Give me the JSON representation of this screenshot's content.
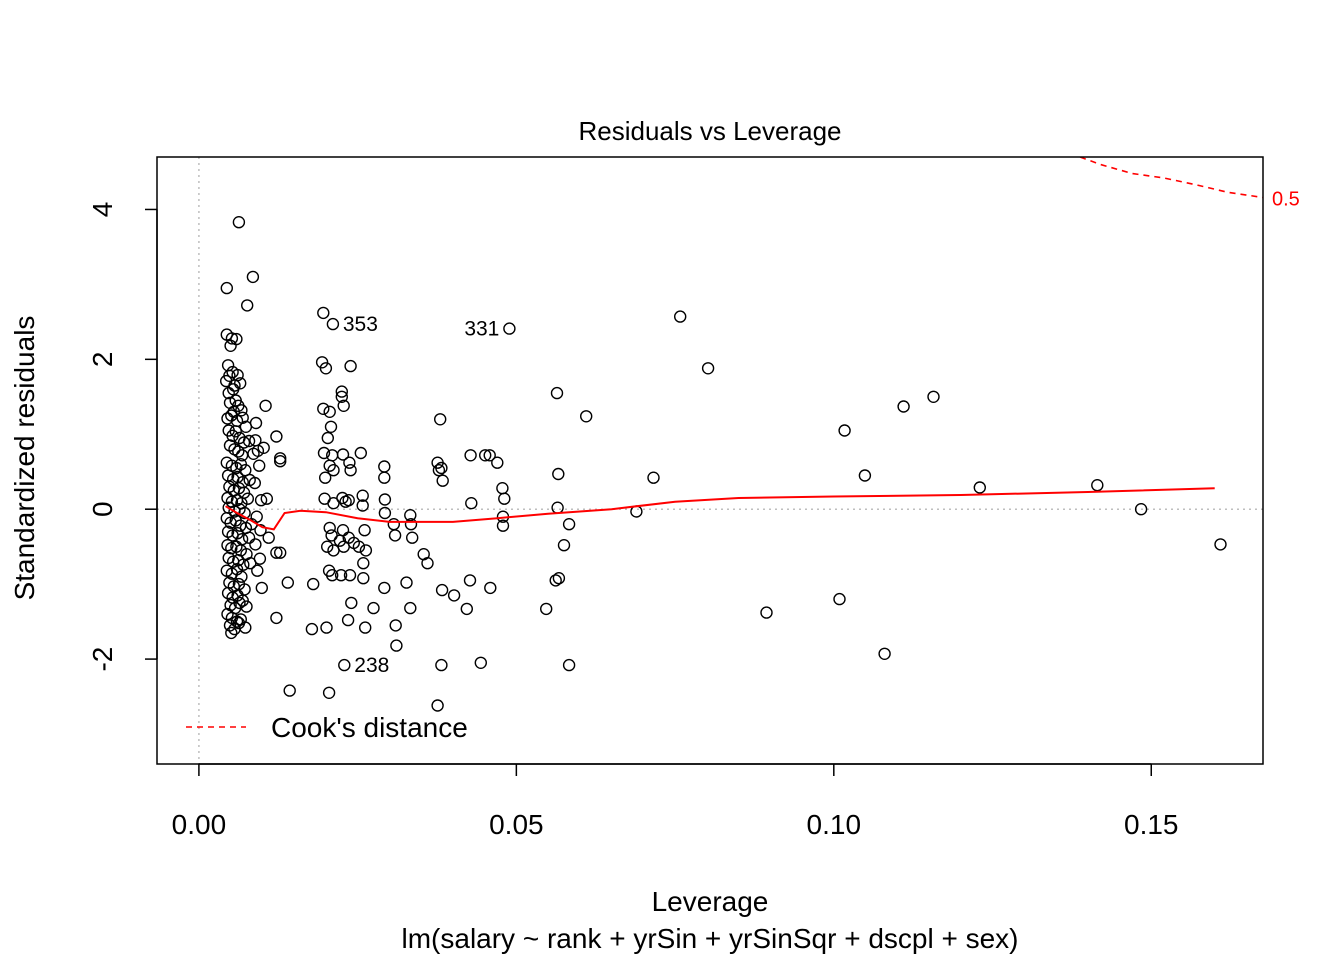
{
  "chart_data": {
    "type": "scatter",
    "title": "Residuals vs Leverage",
    "xlabel": "Leverage",
    "subtitle": "lm(salary ~ rank + yrSin + yrSinSqr + dscpl + sex)",
    "ylabel": "Standardized residuals",
    "xlim": [
      -0.0066,
      0.1676
    ],
    "ylim": [
      -3.4,
      4.7
    ],
    "x_ticks": [
      0.0,
      0.05,
      0.1,
      0.15
    ],
    "x_tick_labels": [
      "0.00",
      "0.05",
      "0.10",
      "0.15"
    ],
    "y_ticks": [
      -2,
      0,
      2,
      4
    ],
    "y_tick_labels": [
      "-2",
      "0",
      "2",
      "4"
    ],
    "grid": false,
    "reference_lines": {
      "x": 0,
      "y": 0
    },
    "legend": {
      "position": "bottom-left",
      "label": "Cook's distance",
      "color": "#ff0000"
    },
    "colors": {
      "points": "#000000",
      "smooth": "#ff0000",
      "cooks": "#ff0000",
      "refline": "#bebebe"
    },
    "point_labels": [
      {
        "id": "353",
        "x": 0.0211,
        "y": 2.47,
        "side": "right"
      },
      {
        "id": "331",
        "x": 0.0489,
        "y": 2.41,
        "side": "left"
      },
      {
        "id": "238",
        "x": 0.0229,
        "y": -2.08,
        "side": "right"
      }
    ],
    "cooks_contour": {
      "label": "0.5",
      "points": [
        [
          0.1388,
          4.7
        ],
        [
          0.142,
          4.6
        ],
        [
          0.147,
          4.48
        ],
        [
          0.152,
          4.42
        ],
        [
          0.157,
          4.33
        ],
        [
          0.162,
          4.23
        ],
        [
          0.1676,
          4.16
        ]
      ]
    },
    "smooth_line": [
      [
        0.0042,
        0.04
      ],
      [
        0.006,
        -0.05
      ],
      [
        0.008,
        -0.14
      ],
      [
        0.01,
        -0.24
      ],
      [
        0.0118,
        -0.27
      ],
      [
        0.0135,
        -0.05
      ],
      [
        0.016,
        -0.02
      ],
      [
        0.02,
        -0.04
      ],
      [
        0.025,
        -0.12
      ],
      [
        0.03,
        -0.17
      ],
      [
        0.04,
        -0.17
      ],
      [
        0.047,
        -0.12
      ],
      [
        0.055,
        -0.06
      ],
      [
        0.065,
        0.0
      ],
      [
        0.075,
        0.1
      ],
      [
        0.085,
        0.15
      ],
      [
        0.1,
        0.17
      ],
      [
        0.12,
        0.19
      ],
      [
        0.14,
        0.23
      ],
      [
        0.16,
        0.28
      ]
    ],
    "points": [
      [
        0.0063,
        3.83
      ],
      [
        0.0044,
        2.95
      ],
      [
        0.0085,
        3.1
      ],
      [
        0.0076,
        2.72
      ],
      [
        0.0044,
        2.33
      ],
      [
        0.0052,
        2.28
      ],
      [
        0.0059,
        2.27
      ],
      [
        0.005,
        2.18
      ],
      [
        0.0046,
        1.92
      ],
      [
        0.0048,
        1.78
      ],
      [
        0.0053,
        1.83
      ],
      [
        0.0061,
        1.79
      ],
      [
        0.0056,
        1.65
      ],
      [
        0.0043,
        1.71
      ],
      [
        0.0065,
        1.68
      ],
      [
        0.0047,
        1.55
      ],
      [
        0.0054,
        1.6
      ],
      [
        0.0058,
        1.45
      ],
      [
        0.0062,
        1.38
      ],
      [
        0.0049,
        1.42
      ],
      [
        0.0055,
        1.3
      ],
      [
        0.0067,
        1.32
      ],
      [
        0.0045,
        1.21
      ],
      [
        0.0051,
        1.25
      ],
      [
        0.006,
        1.18
      ],
      [
        0.0069,
        1.22
      ],
      [
        0.0074,
        1.1
      ],
      [
        0.0047,
        1.05
      ],
      [
        0.0053,
        0.98
      ],
      [
        0.0058,
        1.04
      ],
      [
        0.0064,
        0.95
      ],
      [
        0.0071,
        0.89
      ],
      [
        0.0079,
        0.91
      ],
      [
        0.0049,
        0.85
      ],
      [
        0.0056,
        0.8
      ],
      [
        0.0062,
        0.77
      ],
      [
        0.0068,
        0.72
      ],
      [
        0.0086,
        0.74
      ],
      [
        0.0044,
        0.62
      ],
      [
        0.0052,
        0.58
      ],
      [
        0.0059,
        0.55
      ],
      [
        0.0066,
        0.6
      ],
      [
        0.0073,
        0.52
      ],
      [
        0.0046,
        0.45
      ],
      [
        0.0054,
        0.4
      ],
      [
        0.0061,
        0.43
      ],
      [
        0.0069,
        0.36
      ],
      [
        0.008,
        0.39
      ],
      [
        0.0048,
        0.3
      ],
      [
        0.0055,
        0.25
      ],
      [
        0.0063,
        0.28
      ],
      [
        0.0071,
        0.22
      ],
      [
        0.0045,
        0.15
      ],
      [
        0.0052,
        0.1
      ],
      [
        0.006,
        0.12
      ],
      [
        0.0067,
        0.08
      ],
      [
        0.0077,
        0.14
      ],
      [
        0.0047,
        0.02
      ],
      [
        0.0056,
        -0.03
      ],
      [
        0.0064,
        0.0
      ],
      [
        0.0072,
        -0.05
      ],
      [
        0.0044,
        -0.12
      ],
      [
        0.005,
        -0.18
      ],
      [
        0.0058,
        -0.15
      ],
      [
        0.0065,
        -0.22
      ],
      [
        0.0074,
        -0.25
      ],
      [
        0.0083,
        -0.2
      ],
      [
        0.0046,
        -0.3
      ],
      [
        0.0053,
        -0.35
      ],
      [
        0.0061,
        -0.32
      ],
      [
        0.0068,
        -0.4
      ],
      [
        0.0079,
        -0.38
      ],
      [
        0.0045,
        -0.48
      ],
      [
        0.0051,
        -0.52
      ],
      [
        0.0059,
        -0.5
      ],
      [
        0.0066,
        -0.55
      ],
      [
        0.0075,
        -0.6
      ],
      [
        0.0047,
        -0.65
      ],
      [
        0.0054,
        -0.7
      ],
      [
        0.0062,
        -0.68
      ],
      [
        0.007,
        -0.74
      ],
      [
        0.0081,
        -0.72
      ],
      [
        0.0044,
        -0.82
      ],
      [
        0.0052,
        -0.86
      ],
      [
        0.006,
        -0.8
      ],
      [
        0.0067,
        -0.9
      ],
      [
        0.0048,
        -0.98
      ],
      [
        0.0055,
        -1.03
      ],
      [
        0.0063,
        -1.0
      ],
      [
        0.0072,
        -1.07
      ],
      [
        0.0046,
        -1.12
      ],
      [
        0.0053,
        -1.18
      ],
      [
        0.0061,
        -1.15
      ],
      [
        0.0069,
        -1.22
      ],
      [
        0.005,
        -1.28
      ],
      [
        0.0057,
        -1.32
      ],
      [
        0.0064,
        -1.25
      ],
      [
        0.0075,
        -1.3
      ],
      [
        0.0045,
        -1.4
      ],
      [
        0.0052,
        -1.45
      ],
      [
        0.006,
        -1.5
      ],
      [
        0.0066,
        -1.47
      ],
      [
        0.0049,
        -1.55
      ],
      [
        0.0056,
        -1.6
      ],
      [
        0.0063,
        -1.52
      ],
      [
        0.0073,
        -1.58
      ],
      [
        0.0051,
        -1.65
      ],
      [
        0.009,
        1.15
      ],
      [
        0.0089,
        0.92
      ],
      [
        0.0093,
        0.78
      ],
      [
        0.0095,
        0.58
      ],
      [
        0.0088,
        0.35
      ],
      [
        0.0098,
        0.12
      ],
      [
        0.0091,
        -0.1
      ],
      [
        0.0097,
        -0.28
      ],
      [
        0.0089,
        -0.47
      ],
      [
        0.0096,
        -0.66
      ],
      [
        0.0092,
        -0.82
      ],
      [
        0.0099,
        -1.05
      ],
      [
        0.0105,
        1.38
      ],
      [
        0.0122,
        0.97
      ],
      [
        0.0128,
        0.68
      ],
      [
        0.0128,
        0.64
      ],
      [
        0.0102,
        0.82
      ],
      [
        0.0107,
        0.14
      ],
      [
        0.011,
        -0.38
      ],
      [
        0.0122,
        -0.58
      ],
      [
        0.0128,
        -0.58
      ],
      [
        0.0122,
        -1.45
      ],
      [
        0.014,
        -0.98
      ],
      [
        0.0143,
        -2.42
      ],
      [
        0.0178,
        -1.6
      ],
      [
        0.018,
        -1.0
      ],
      [
        0.0196,
        2.62
      ],
      [
        0.0194,
        1.96
      ],
      [
        0.02,
        1.88
      ],
      [
        0.0196,
        1.34
      ],
      [
        0.0206,
        1.3
      ],
      [
        0.0208,
        1.1
      ],
      [
        0.0203,
        0.95
      ],
      [
        0.0197,
        0.75
      ],
      [
        0.021,
        0.72
      ],
      [
        0.0206,
        0.58
      ],
      [
        0.0199,
        0.42
      ],
      [
        0.0212,
        0.52
      ],
      [
        0.0198,
        0.14
      ],
      [
        0.0212,
        0.08
      ],
      [
        0.0206,
        -0.25
      ],
      [
        0.0202,
        -0.5
      ],
      [
        0.0212,
        -0.55
      ],
      [
        0.0209,
        -0.35
      ],
      [
        0.0205,
        -0.82
      ],
      [
        0.021,
        -0.88
      ],
      [
        0.0201,
        -1.58
      ],
      [
        0.0205,
        -2.45
      ],
      [
        0.0211,
        2.47
      ],
      [
        0.0225,
        1.57
      ],
      [
        0.0225,
        1.5
      ],
      [
        0.0228,
        1.38
      ],
      [
        0.0239,
        1.91
      ],
      [
        0.0227,
        0.73
      ],
      [
        0.0237,
        0.62
      ],
      [
        0.0239,
        0.52
      ],
      [
        0.0255,
        0.75
      ],
      [
        0.0226,
        0.15
      ],
      [
        0.0231,
        0.1
      ],
      [
        0.0236,
        0.12
      ],
      [
        0.0258,
        0.18
      ],
      [
        0.0258,
        0.05
      ],
      [
        0.0227,
        -0.28
      ],
      [
        0.0222,
        -0.42
      ],
      [
        0.0236,
        -0.38
      ],
      [
        0.0228,
        -0.5
      ],
      [
        0.0244,
        -0.45
      ],
      [
        0.0252,
        -0.5
      ],
      [
        0.0261,
        -0.28
      ],
      [
        0.0224,
        -0.88
      ],
      [
        0.0238,
        -0.88
      ],
      [
        0.0259,
        -0.72
      ],
      [
        0.0259,
        -0.92
      ],
      [
        0.0263,
        -0.55
      ],
      [
        0.024,
        -1.25
      ],
      [
        0.0235,
        -1.48
      ],
      [
        0.0262,
        -1.58
      ],
      [
        0.0275,
        -1.32
      ],
      [
        0.0229,
        -2.08
      ],
      [
        0.0292,
        0.57
      ],
      [
        0.0292,
        0.42
      ],
      [
        0.0293,
        0.13
      ],
      [
        0.0293,
        -0.05
      ],
      [
        0.0307,
        -0.2
      ],
      [
        0.0309,
        -0.35
      ],
      [
        0.0292,
        -1.05
      ],
      [
        0.031,
        -1.55
      ],
      [
        0.0311,
        -1.82
      ],
      [
        0.0327,
        -0.98
      ],
      [
        0.0333,
        -1.32
      ],
      [
        0.0333,
        -0.08
      ],
      [
        0.0334,
        -0.2
      ],
      [
        0.0336,
        -0.38
      ],
      [
        0.0354,
        -0.6
      ],
      [
        0.036,
        -0.72
      ],
      [
        0.038,
        1.2
      ],
      [
        0.0376,
        0.62
      ],
      [
        0.0378,
        0.52
      ],
      [
        0.0382,
        0.55
      ],
      [
        0.0384,
        0.38
      ],
      [
        0.0383,
        -1.08
      ],
      [
        0.0382,
        -2.08
      ],
      [
        0.0376,
        -2.62
      ],
      [
        0.0402,
        -1.15
      ],
      [
        0.0422,
        -1.33
      ],
      [
        0.0428,
        0.72
      ],
      [
        0.0429,
        0.08
      ],
      [
        0.0427,
        -0.95
      ],
      [
        0.0444,
        -2.05
      ],
      [
        0.0451,
        0.72
      ],
      [
        0.0458,
        0.72
      ],
      [
        0.0459,
        -1.05
      ],
      [
        0.047,
        0.62
      ],
      [
        0.0478,
        0.28
      ],
      [
        0.0481,
        0.14
      ],
      [
        0.0479,
        -0.1
      ],
      [
        0.0479,
        -0.22
      ],
      [
        0.0489,
        2.41
      ],
      [
        0.0547,
        -1.33
      ],
      [
        0.0564,
        1.55
      ],
      [
        0.0566,
        0.47
      ],
      [
        0.0565,
        0.02
      ],
      [
        0.0562,
        -0.95
      ],
      [
        0.0567,
        -0.92
      ],
      [
        0.0575,
        -0.48
      ],
      [
        0.0583,
        -0.2
      ],
      [
        0.0583,
        -2.08
      ],
      [
        0.061,
        1.24
      ],
      [
        0.0689,
        -0.03
      ],
      [
        0.0716,
        0.42
      ],
      [
        0.0758,
        2.57
      ],
      [
        0.0802,
        1.88
      ],
      [
        0.0894,
        -1.38
      ],
      [
        0.1009,
        -1.2
      ],
      [
        0.1017,
        1.05
      ],
      [
        0.1049,
        0.45
      ],
      [
        0.108,
        -1.93
      ],
      [
        0.111,
        1.37
      ],
      [
        0.1157,
        1.5
      ],
      [
        0.123,
        0.29
      ],
      [
        0.1415,
        0.32
      ],
      [
        0.1484,
        0.0
      ],
      [
        0.1609,
        -0.47
      ]
    ]
  }
}
